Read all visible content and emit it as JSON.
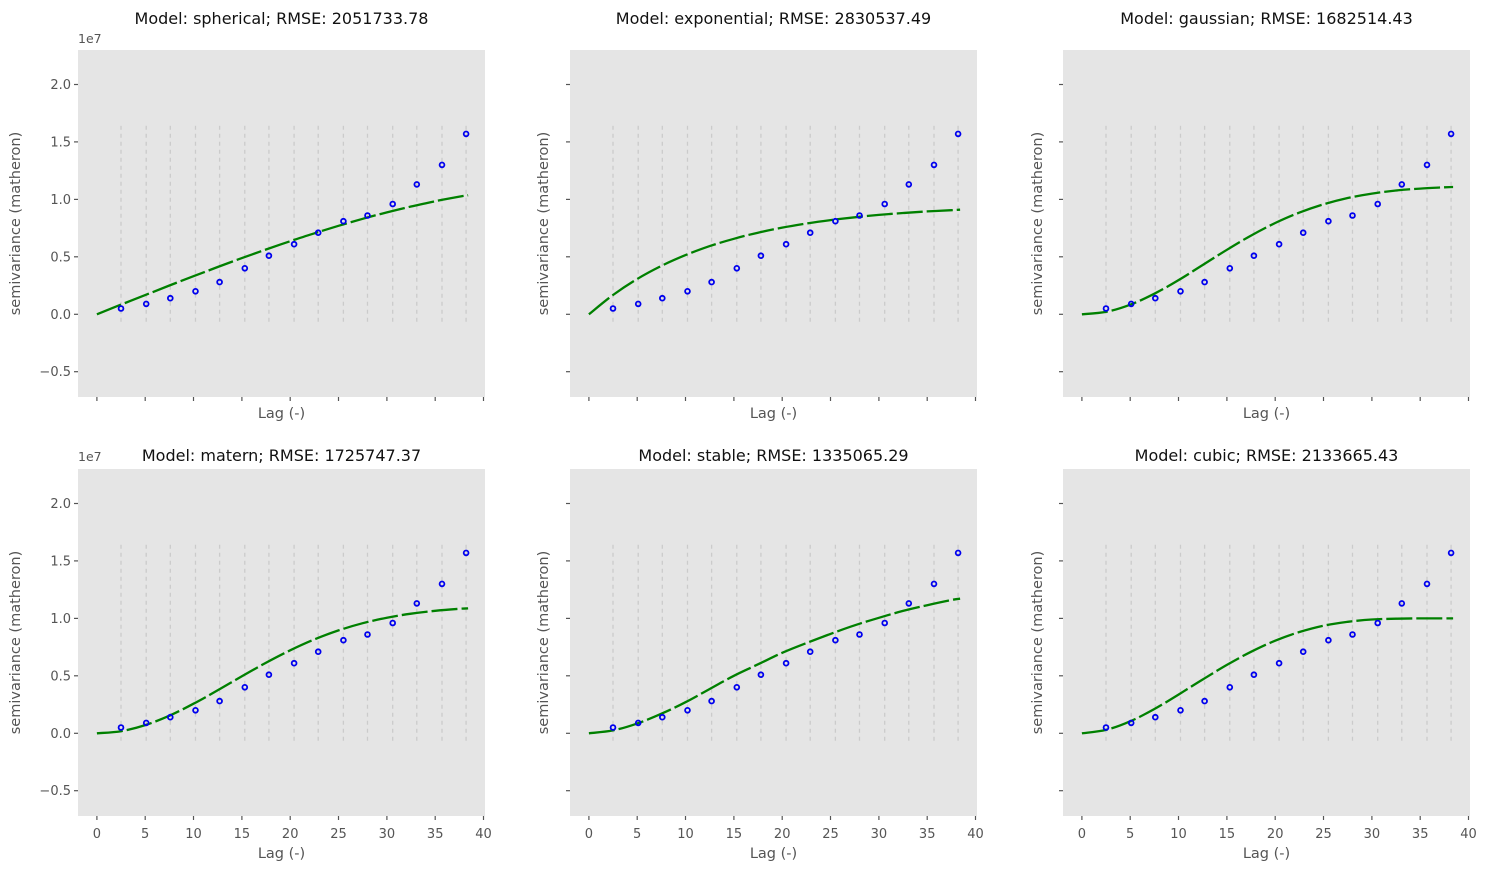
{
  "figure": {
    "ylabel": "semivariance (matheron)",
    "xlabel": "Lag (-)",
    "offset_text": "1e7",
    "background": "#ffffff",
    "axes_background": "#e5e5e5",
    "x_ticks": [
      0,
      5,
      10,
      15,
      20,
      25,
      30,
      35,
      40
    ],
    "y_ticks": [
      -0.5,
      0.0,
      0.5,
      1.0,
      1.5,
      2.0
    ],
    "xlim": [
      -1.95,
      40.15
    ],
    "ylim": [
      -0.72,
      2.3
    ],
    "y_scale_note": "y values are in units of 1e7",
    "tick_color": "#555555",
    "title_color": "#111111",
    "scatter_color": "#0000ee",
    "line_color": "#008000",
    "bin_line_color": "#cbcbcb",
    "bin_line_span_1e7": [
      -0.08,
      1.64
    ]
  },
  "experimental": {
    "lags": [
      2.5,
      5.1,
      7.6,
      10.2,
      12.7,
      15.3,
      17.8,
      20.4,
      22.9,
      25.5,
      28.0,
      30.6,
      33.1,
      35.7,
      38.2
    ],
    "semivariance_1e7": [
      0.05,
      0.09,
      0.14,
      0.2,
      0.28,
      0.4,
      0.51,
      0.61,
      0.71,
      0.81,
      0.86,
      0.96,
      1.13,
      1.3,
      1.57
    ]
  },
  "curve_lags": [
    0,
    2.5,
    5,
    7.5,
    10,
    12.5,
    15,
    17.5,
    20,
    22.5,
    25,
    27.5,
    30,
    32.5,
    35,
    37.5,
    38.4
  ],
  "chart_data": [
    {
      "type": "scatter",
      "model": "spherical",
      "rmse": 2051733.78,
      "title": "Model: spherical; RMSE: 2051733.78",
      "scatter_lags": [
        2.5,
        5.1,
        7.6,
        10.2,
        12.7,
        15.3,
        17.8,
        20.4,
        22.9,
        25.5,
        28.0,
        30.6,
        33.1,
        35.7,
        38.2
      ],
      "scatter_semivariance_1e7": [
        0.05,
        0.09,
        0.14,
        0.2,
        0.28,
        0.4,
        0.51,
        0.61,
        0.71,
        0.81,
        0.86,
        0.96,
        1.13,
        1.3,
        1.57
      ],
      "curve_semivariance_1e7": [
        0,
        0.084,
        0.167,
        0.25,
        0.331,
        0.411,
        0.489,
        0.564,
        0.636,
        0.705,
        0.77,
        0.831,
        0.887,
        0.938,
        0.984,
        1.024,
        1.036
      ]
    },
    {
      "type": "scatter",
      "model": "exponential",
      "rmse": 2830537.49,
      "title": "Model: exponential; RMSE: 2830537.49",
      "scatter_lags": [
        2.5,
        5.1,
        7.6,
        10.2,
        12.7,
        15.3,
        17.8,
        20.4,
        22.9,
        25.5,
        28.0,
        30.6,
        33.1,
        35.7,
        38.2
      ],
      "scatter_semivariance_1e7": [
        0.05,
        0.09,
        0.14,
        0.2,
        0.28,
        0.4,
        0.51,
        0.61,
        0.71,
        0.81,
        0.86,
        0.96,
        1.13,
        1.3,
        1.57
      ],
      "curve_semivariance_1e7": [
        0,
        0.168,
        0.307,
        0.421,
        0.515,
        0.593,
        0.657,
        0.71,
        0.754,
        0.79,
        0.82,
        0.844,
        0.865,
        0.881,
        0.895,
        0.906,
        0.91
      ]
    },
    {
      "type": "scatter",
      "model": "gaussian",
      "rmse": 1682514.43,
      "title": "Model: gaussian; RMSE: 1682514.43",
      "scatter_lags": [
        2.5,
        5.1,
        7.6,
        10.2,
        12.7,
        15.3,
        17.8,
        20.4,
        22.9,
        25.5,
        28.0,
        30.6,
        33.1,
        35.7,
        38.2
      ],
      "scatter_semivariance_1e7": [
        0.05,
        0.09,
        0.14,
        0.2,
        0.28,
        0.4,
        0.51,
        0.61,
        0.71,
        0.81,
        0.86,
        0.96,
        1.13,
        1.3,
        1.57
      ],
      "curve_semivariance_1e7": [
        0,
        0.021,
        0.083,
        0.179,
        0.297,
        0.429,
        0.561,
        0.685,
        0.794,
        0.885,
        0.957,
        1.012,
        1.05,
        1.077,
        1.094,
        1.105,
        1.108
      ]
    },
    {
      "type": "scatter",
      "model": "matern",
      "rmse": 1725747.37,
      "title": "Model: matern; RMSE: 1725747.37",
      "scatter_lags": [
        2.5,
        5.1,
        7.6,
        10.2,
        12.7,
        15.3,
        17.8,
        20.4,
        22.9,
        25.5,
        28.0,
        30.6,
        33.1,
        35.7,
        38.2
      ],
      "scatter_semivariance_1e7": [
        0.05,
        0.09,
        0.14,
        0.2,
        0.28,
        0.4,
        0.51,
        0.61,
        0.71,
        0.81,
        0.86,
        0.96,
        1.13,
        1.3,
        1.57
      ],
      "curve_semivariance_1e7": [
        0,
        0.018,
        0.071,
        0.153,
        0.257,
        0.374,
        0.496,
        0.614,
        0.722,
        0.817,
        0.895,
        0.958,
        1.006,
        1.041,
        1.066,
        1.083,
        1.087
      ]
    },
    {
      "type": "scatter",
      "model": "stable",
      "rmse": 1335065.29,
      "title": "Model: stable; RMSE: 1335065.29",
      "scatter_lags": [
        2.5,
        5.1,
        7.6,
        10.2,
        12.7,
        15.3,
        17.8,
        20.4,
        22.9,
        25.5,
        28.0,
        30.6,
        33.1,
        35.7,
        38.2
      ],
      "scatter_semivariance_1e7": [
        0.05,
        0.09,
        0.14,
        0.2,
        0.28,
        0.4,
        0.51,
        0.61,
        0.71,
        0.81,
        0.86,
        0.96,
        1.13,
        1.3,
        1.57
      ],
      "curve_semivariance_1e7": [
        0,
        0.025,
        0.085,
        0.17,
        0.27,
        0.385,
        0.5,
        0.6,
        0.7,
        0.785,
        0.865,
        0.94,
        1.005,
        1.065,
        1.115,
        1.16,
        1.171
      ]
    },
    {
      "type": "scatter",
      "model": "cubic",
      "rmse": 2133665.43,
      "title": "Model: cubic; RMSE: 2133665.43",
      "scatter_lags": [
        2.5,
        5.1,
        7.6,
        10.2,
        12.7,
        15.3,
        17.8,
        20.4,
        22.9,
        25.5,
        28.0,
        30.6,
        33.1,
        35.7,
        38.2
      ],
      "scatter_semivariance_1e7": [
        0.05,
        0.09,
        0.14,
        0.2,
        0.28,
        0.4,
        0.51,
        0.61,
        0.71,
        0.81,
        0.86,
        0.96,
        1.13,
        1.3,
        1.57
      ],
      "curve_semivariance_1e7": [
        0,
        0.029,
        0.104,
        0.211,
        0.337,
        0.468,
        0.595,
        0.709,
        0.806,
        0.881,
        0.936,
        0.97,
        0.99,
        0.997,
        1.0,
        1.0,
        1.0
      ]
    }
  ]
}
